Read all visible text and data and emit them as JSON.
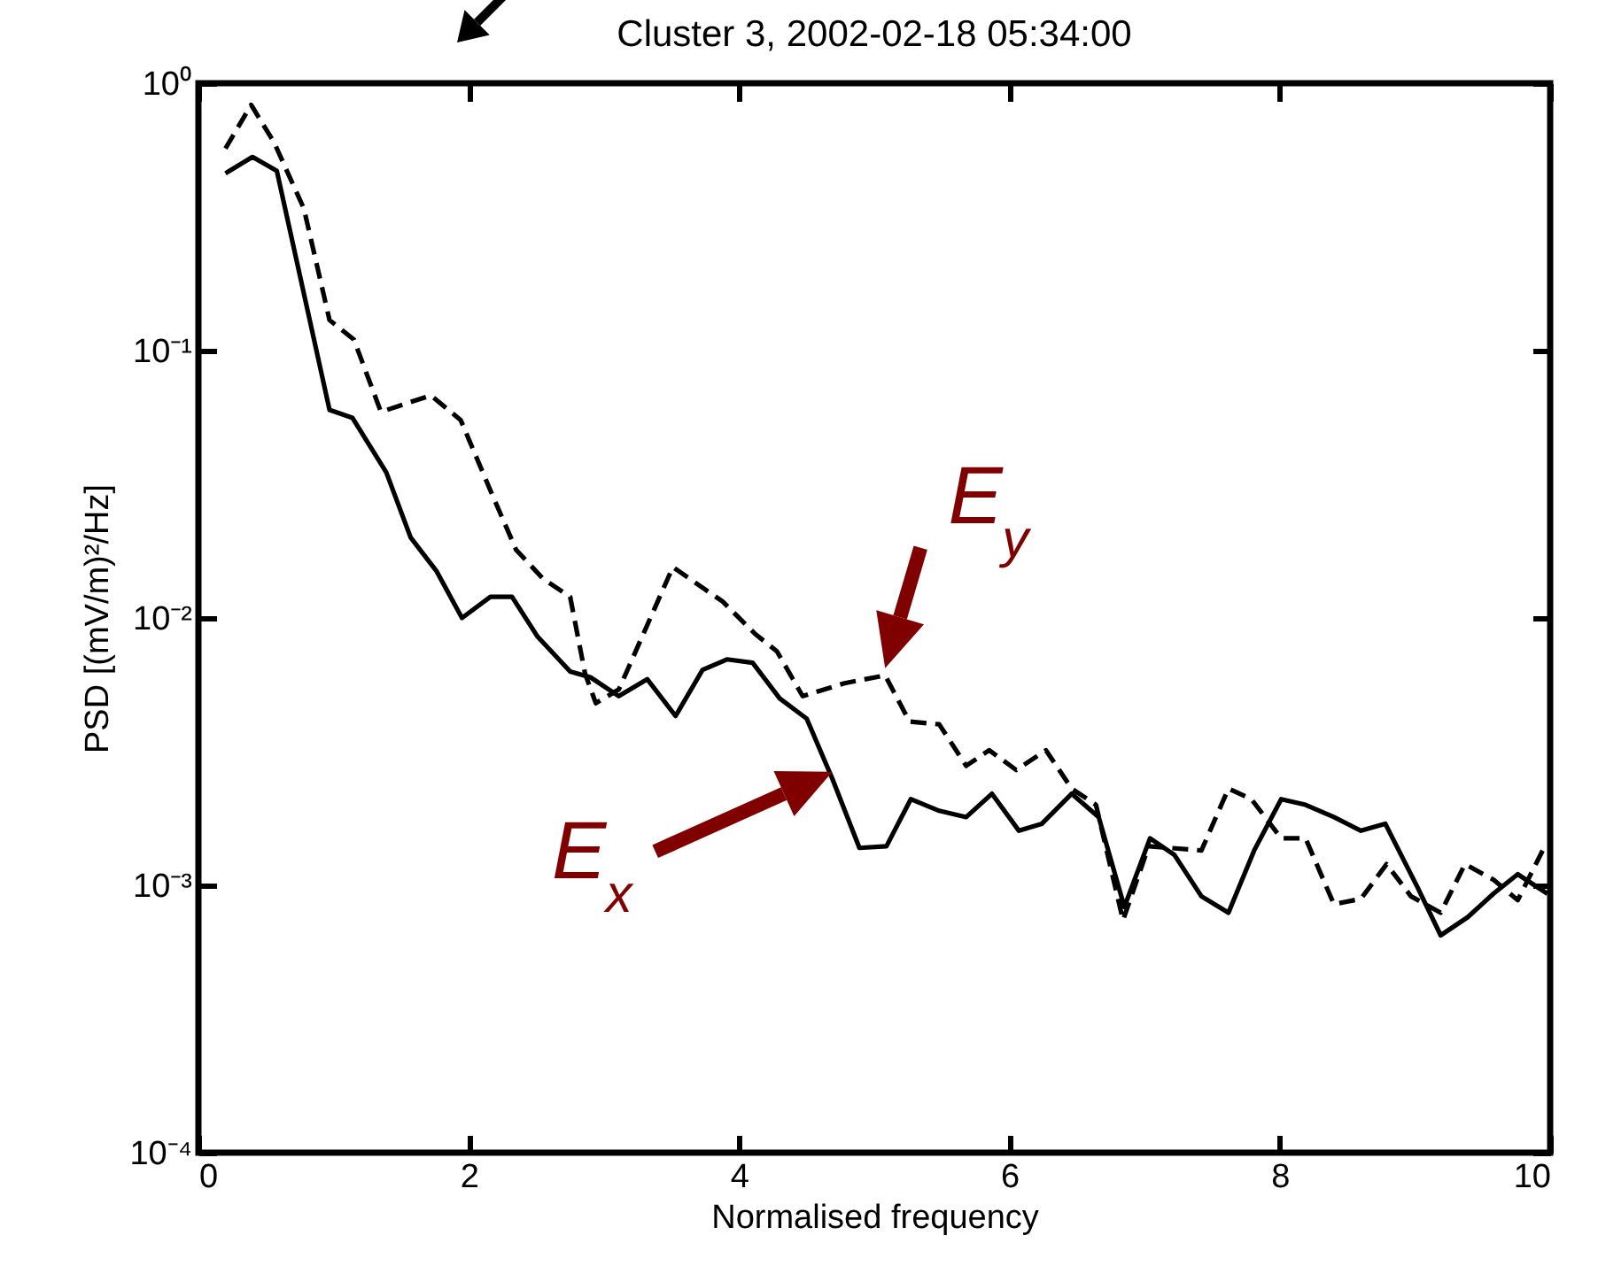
{
  "chart_data": {
    "type": "line",
    "title": "Cluster 3, 2002-02-18 05:34:00",
    "xlabel": "Normalised frequency",
    "ylabel": "PSD [(mV/m)²/Hz]",
    "xlim": [
      0,
      10
    ],
    "xticks": [
      0,
      2,
      4,
      6,
      8,
      10
    ],
    "ylim": [
      0.0001,
      1
    ],
    "log": "y",
    "yticks": [
      {
        "value": 0.0001,
        "label": "10⁻⁴"
      },
      {
        "value": 0.001,
        "label": "10⁻³"
      },
      {
        "value": 0.01,
        "label": "10⁻²"
      },
      {
        "value": 0.1,
        "label": "10⁻¹"
      },
      {
        "value": 1,
        "label": "10⁰"
      }
    ],
    "series": [
      {
        "color": "#000000",
        "line_style": "solid",
        "x": [
          0.2,
          0.4,
          0.58,
          0.97,
          1.14,
          1.39,
          1.57,
          1.76,
          1.95,
          2.16,
          2.32,
          2.51,
          2.75,
          2.9,
          3.11,
          3.32,
          3.53,
          3.73,
          3.91,
          4.1,
          4.3,
          4.5,
          4.69,
          4.89,
          5.09,
          5.27,
          5.48,
          5.68,
          5.87,
          6.07,
          6.24,
          6.46,
          6.66,
          6.85,
          7.04,
          7.22,
          7.42,
          7.62,
          7.81,
          8.01,
          8.19,
          8.4,
          8.6,
          8.78,
          9.02,
          9.19,
          9.39,
          9.58,
          9.76,
          9.98
        ],
        "values": [
          0.46,
          0.53,
          0.47,
          0.06,
          0.056,
          0.035,
          0.02,
          0.015,
          0.01,
          0.012,
          0.012,
          0.0085,
          0.0063,
          0.006,
          0.0051,
          0.0059,
          0.0043,
          0.0064,
          0.007,
          0.0068,
          0.005,
          0.0042,
          0.0025,
          0.00138,
          0.0014,
          0.0021,
          0.0019,
          0.0018,
          0.0022,
          0.0016,
          0.0017,
          0.0022,
          0.0018,
          0.00083,
          0.0015,
          0.0013,
          0.00091,
          0.00079,
          0.00135,
          0.0021,
          0.002,
          0.0018,
          0.0016,
          0.0017,
          0.00098,
          0.00065,
          0.00076,
          0.00093,
          0.0011,
          0.00093
        ]
      },
      {
        "color": "#000000",
        "line_style": "dashed",
        "x": [
          0.2,
          0.39,
          0.56,
          0.78,
          0.97,
          1.15,
          1.35,
          1.72,
          1.94,
          2.16,
          2.35,
          2.55,
          2.75,
          2.86,
          2.94,
          3.11,
          3.51,
          3.88,
          4.12,
          4.28,
          4.47,
          4.78,
          5.08,
          5.26,
          5.48,
          5.68,
          5.85,
          6.05,
          6.27,
          6.46,
          6.64,
          6.84,
          7.03,
          7.42,
          7.62,
          7.79,
          8.01,
          8.19,
          8.4,
          8.6,
          8.79,
          8.97,
          9.19,
          9.37,
          9.58,
          9.76,
          9.96
        ],
        "values": [
          0.57,
          0.83,
          0.6,
          0.34,
          0.13,
          0.11,
          0.059,
          0.068,
          0.055,
          0.03,
          0.018,
          0.014,
          0.012,
          0.0062,
          0.0048,
          0.0054,
          0.0155,
          0.0115,
          0.0087,
          0.0075,
          0.0051,
          0.0057,
          0.0061,
          0.0041,
          0.004,
          0.0028,
          0.0032,
          0.0027,
          0.0032,
          0.0023,
          0.002,
          0.00074,
          0.0014,
          0.00135,
          0.0023,
          0.0021,
          0.0015,
          0.0015,
          0.00085,
          0.00089,
          0.0012,
          0.00091,
          0.00079,
          0.0012,
          0.00105,
          0.00088,
          0.0014
        ]
      }
    ],
    "annotations": [
      {
        "text": "E$_{y}$",
        "x": 5.08,
        "y": 0.0061
      },
      {
        "text": "E$_{x}$",
        "x": 4.69,
        "y": 0.0025
      }
    ]
  }
}
